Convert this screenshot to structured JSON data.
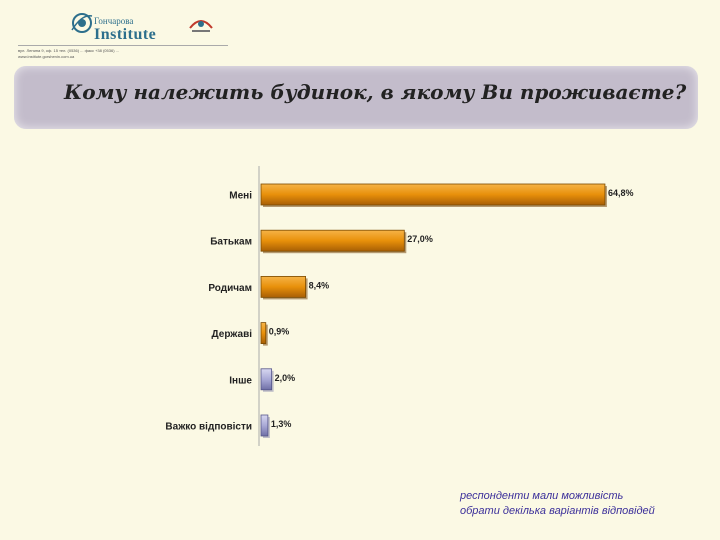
{
  "header": {
    "logo_line1": "Гончарова",
    "logo_line2": "Institute",
    "address_lines": [
      "вул. Ленина 9, оф. 15 тел. (0536) ... факс +38 (0536) ...",
      "www.institute.gorshenin.com.ua"
    ]
  },
  "title": "Кому належить будинок, в якому Ви проживаєте?",
  "chart_data": {
    "type": "bar",
    "orientation": "horizontal",
    "categories": [
      "Мені",
      "Батькам",
      "Родичам",
      "Державі",
      "Інше",
      "Важко відповісти"
    ],
    "values": [
      64.8,
      27.0,
      8.4,
      0.9,
      2.0,
      1.3
    ],
    "labels": [
      "64,8%",
      "27,0%",
      "8,4%",
      "0,9%",
      "2,0%",
      "1,3%"
    ],
    "xlim": [
      0,
      65
    ],
    "colors": [
      "#e8900a",
      "#e8900a",
      "#e8900a",
      "#e8900a",
      "#a9a9d6",
      "#a9a9d6"
    ],
    "grid": false
  },
  "footnote": {
    "line1": "респонденти мали можливість",
    "line2": "обрати декілька варіантів відповідей"
  }
}
